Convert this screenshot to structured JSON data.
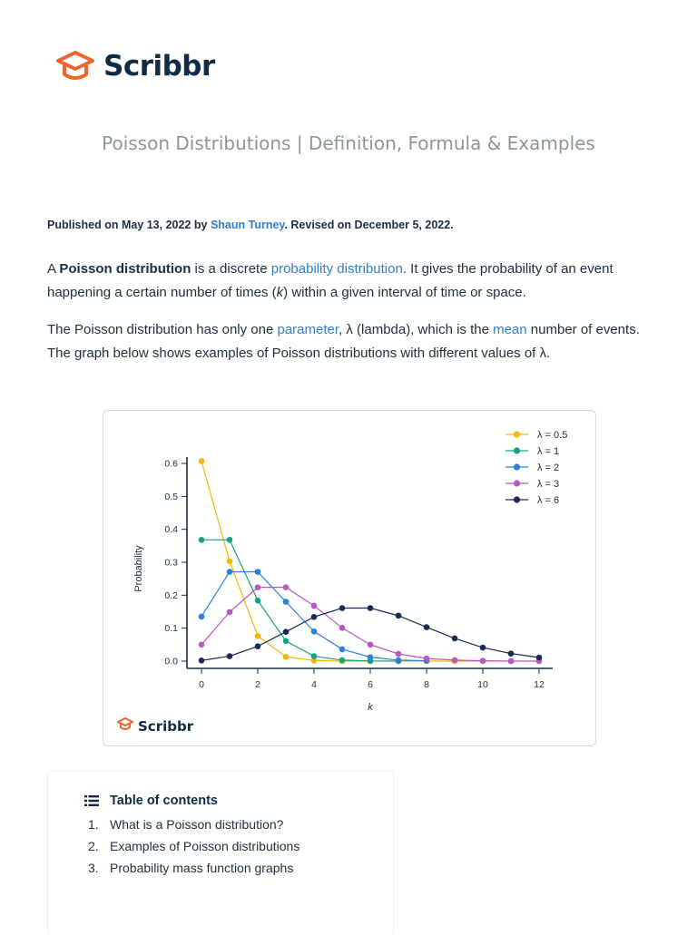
{
  "brand": {
    "name": "Scribbr",
    "accent": "#f0642a",
    "dark": "#0f2b45",
    "link": "#2f80c9"
  },
  "article": {
    "title": "Poisson Distributions | Definition, Formula & Examples",
    "published_prefix": "Published on May 13, 2022 by ",
    "author": "Shaun Turney",
    "revised": ". Revised on December 5, 2022.",
    "p1": {
      "a": "A ",
      "term": "Poisson distribution",
      "b": " is a discrete ",
      "link": "probability distribution",
      "c": ". It gives the probability of an event happening a certain number of times (",
      "k": "k",
      "d": ") within a given interval of time or space."
    },
    "p2": {
      "a": "The Poisson distribution has only one ",
      "link1": "parameter",
      "b": ", λ (lambda), which is the ",
      "link2": "mean",
      "c": " number of events. The graph below shows examples of Poisson distributions with different values of λ."
    }
  },
  "chart_data": {
    "type": "line",
    "xlabel": "k",
    "ylabel": "Probability",
    "xlim": [
      0,
      12
    ],
    "ylim": [
      0,
      0.6
    ],
    "x_ticks": [
      0,
      2,
      4,
      6,
      8,
      10,
      12
    ],
    "y_ticks": [
      0.0,
      0.1,
      0.2,
      0.3,
      0.4,
      0.5,
      0.6
    ],
    "y_tick_labels": [
      "0.0",
      "0.1",
      "0.2",
      "0.3",
      "0.4",
      "0.5",
      "0.6"
    ],
    "legend_position": "top-right",
    "watermark": "Scribbr",
    "series": [
      {
        "name": "λ = 0.5",
        "color": "#f5b800",
        "x": [
          0,
          1,
          2,
          3,
          4,
          5,
          6,
          7,
          8,
          9,
          10,
          11,
          12
        ],
        "values": [
          0.607,
          0.303,
          0.076,
          0.013,
          0.002,
          0,
          0,
          0,
          0,
          0,
          0,
          0,
          0
        ]
      },
      {
        "name": "λ = 1",
        "color": "#12a386",
        "x": [
          0,
          1,
          2,
          3,
          4,
          5,
          6,
          7
        ],
        "values": [
          0.368,
          0.368,
          0.184,
          0.061,
          0.015,
          0.003,
          0.0005,
          0.0001
        ]
      },
      {
        "name": "λ = 2",
        "color": "#2a7fd9",
        "x": [
          0,
          1,
          2,
          3,
          4,
          5,
          6,
          7,
          8
        ],
        "values": [
          0.135,
          0.271,
          0.271,
          0.18,
          0.09,
          0.036,
          0.012,
          0.003,
          0.001
        ]
      },
      {
        "name": "λ = 3",
        "color": "#b857c0",
        "x": [
          0,
          1,
          2,
          3,
          4,
          5,
          6,
          7,
          8,
          9,
          10,
          11,
          12
        ],
        "values": [
          0.05,
          0.149,
          0.224,
          0.224,
          0.168,
          0.101,
          0.05,
          0.022,
          0.008,
          0.003,
          0.001,
          0.0002,
          0.0001
        ]
      },
      {
        "name": "λ = 6",
        "color": "#1b2a52",
        "x": [
          0,
          1,
          2,
          3,
          4,
          5,
          6,
          7,
          8,
          9,
          10,
          11,
          12
        ],
        "values": [
          0.002,
          0.015,
          0.045,
          0.089,
          0.134,
          0.161,
          0.161,
          0.138,
          0.103,
          0.069,
          0.041,
          0.023,
          0.011
        ]
      }
    ]
  },
  "toc": {
    "heading": "Table of contents",
    "icon": "list-icon",
    "items": [
      {
        "num": "1.",
        "label": "What is a Poisson distribution?"
      },
      {
        "num": "2.",
        "label": "Examples of Poisson distributions"
      },
      {
        "num": "3.",
        "label": "Probability mass function graphs"
      }
    ]
  }
}
